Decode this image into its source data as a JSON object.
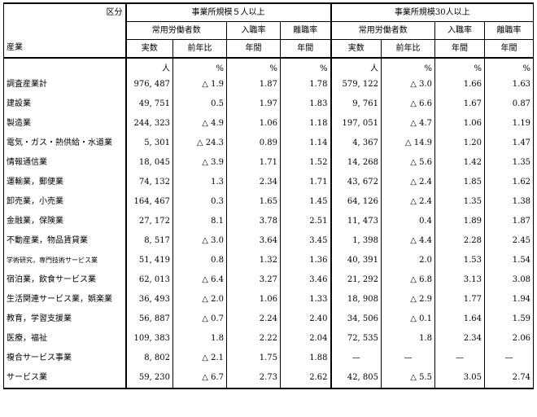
{
  "header": {
    "kubun": "区分",
    "group5": "事業所規模５人以上",
    "group30": "事業所規模30人以上",
    "workers": "常用労働者数",
    "hire_rate": "入職率",
    "sep_rate": "離職率",
    "industry": "産業",
    "actual": "実数",
    "yoy": "前年比",
    "annual": "年間"
  },
  "units": {
    "person": "人",
    "percent": "%"
  },
  "rows": [
    {
      "name": "調査産業計",
      "a_num": "976, 487",
      "a_yoy": "△ 1.9",
      "a_in": "1.87",
      "a_out": "1.78",
      "b_num": "579, 122",
      "b_yoy": "△ 3.0",
      "b_in": "1.66",
      "b_out": "1.63"
    },
    {
      "name": "建設業",
      "a_num": "49, 751",
      "a_yoy": "0.5",
      "a_in": "1.97",
      "a_out": "1.83",
      "b_num": "9, 761",
      "b_yoy": "△ 6.6",
      "b_in": "1.67",
      "b_out": "0.87"
    },
    {
      "name": "製造業",
      "a_num": "244, 323",
      "a_yoy": "△ 4.9",
      "a_in": "1.06",
      "a_out": "1.18",
      "b_num": "197, 051",
      "b_yoy": "△ 4.7",
      "b_in": "1.06",
      "b_out": "1.19"
    },
    {
      "name": "電気・ガス・熱供給・水道業",
      "a_num": "5, 301",
      "a_yoy": "△ 24.3",
      "a_in": "0.89",
      "a_out": "1.14",
      "b_num": "4, 367",
      "b_yoy": "△ 14.9",
      "b_in": "1.20",
      "b_out": "1.47"
    },
    {
      "name": "情報通信業",
      "a_num": "18, 045",
      "a_yoy": "△ 3.9",
      "a_in": "1.71",
      "a_out": "1.52",
      "b_num": "14, 268",
      "b_yoy": "△ 5.6",
      "b_in": "1.42",
      "b_out": "1.35"
    },
    {
      "name": "運輸業，郵便業",
      "a_num": "74, 132",
      "a_yoy": "1.3",
      "a_in": "2.34",
      "a_out": "1.71",
      "b_num": "43, 672",
      "b_yoy": "△ 2.4",
      "b_in": "1.85",
      "b_out": "1.62"
    },
    {
      "name": "卸売業，小売業",
      "a_num": "164, 467",
      "a_yoy": "0.3",
      "a_in": "1.65",
      "a_out": "1.45",
      "b_num": "64, 126",
      "b_yoy": "△ 2.4",
      "b_in": "1.35",
      "b_out": "1.38"
    },
    {
      "name": "金融業，保険業",
      "a_num": "27, 172",
      "a_yoy": "8.1",
      "a_in": "3.78",
      "a_out": "2.51",
      "b_num": "11, 473",
      "b_yoy": "0.4",
      "b_in": "1.89",
      "b_out": "1.87"
    },
    {
      "name": "不動産業，物品賃貸業",
      "a_num": "8, 517",
      "a_yoy": "△ 3.0",
      "a_in": "3.64",
      "a_out": "3.45",
      "b_num": "1, 398",
      "b_yoy": "△ 4.4",
      "b_in": "2.28",
      "b_out": "2.45"
    },
    {
      "name": "学術研究，専門技術サービス業",
      "small": true,
      "a_num": "51, 419",
      "a_yoy": "0.8",
      "a_in": "1.32",
      "a_out": "1.36",
      "b_num": "40, 391",
      "b_yoy": "2.0",
      "b_in": "1.53",
      "b_out": "1.54"
    },
    {
      "name": "宿泊業，飲食サービス業",
      "a_num": "62, 013",
      "a_yoy": "△ 6.4",
      "a_in": "3.27",
      "a_out": "3.46",
      "b_num": "21, 292",
      "b_yoy": "△ 6.8",
      "b_in": "3.13",
      "b_out": "3.08"
    },
    {
      "name": "生活関連サービス業，娯楽業",
      "a_num": "36, 493",
      "a_yoy": "△ 2.0",
      "a_in": "1.06",
      "a_out": "1.33",
      "b_num": "18, 908",
      "b_yoy": "△ 2.9",
      "b_in": "1.77",
      "b_out": "1.94"
    },
    {
      "name": "教育，学習支援業",
      "a_num": "56, 887",
      "a_yoy": "△ 0.7",
      "a_in": "2.24",
      "a_out": "2.40",
      "b_num": "34, 506",
      "b_yoy": "△ 0.1",
      "b_in": "1.64",
      "b_out": "1.59"
    },
    {
      "name": "医療，福祉",
      "a_num": "109, 383",
      "a_yoy": "1.8",
      "a_in": "2.22",
      "a_out": "2.04",
      "b_num": "72, 535",
      "b_yoy": "1.8",
      "b_in": "2.34",
      "b_out": "2.06"
    },
    {
      "name": "複合サービス事業",
      "a_num": "8, 802",
      "a_yoy": "△ 2.1",
      "a_in": "1.75",
      "a_out": "1.88",
      "b_num": "—",
      "b_yoy": "—",
      "b_in": "—",
      "b_out": "—"
    },
    {
      "name": "サービス業",
      "a_num": "59, 230",
      "a_yoy": "△ 6.7",
      "a_in": "2.73",
      "a_out": "2.62",
      "b_num": "42, 805",
      "b_yoy": "△ 5.5",
      "b_in": "3.05",
      "b_out": "2.74"
    }
  ]
}
